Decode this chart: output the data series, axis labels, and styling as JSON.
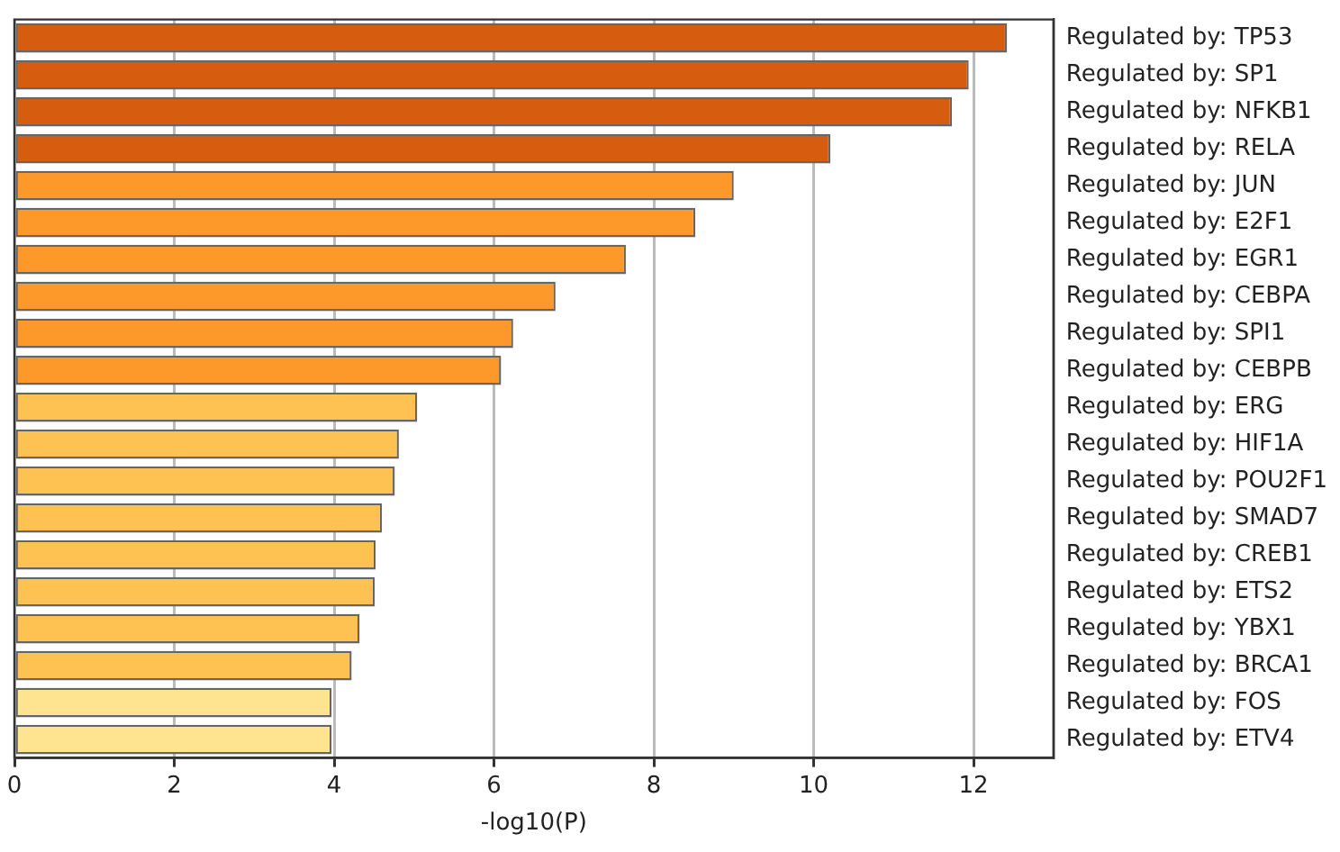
{
  "chart_data": {
    "type": "bar",
    "orientation": "horizontal",
    "xlabel": "-log10(P)",
    "categories": [
      "Regulated by: TP53",
      "Regulated by: SP1",
      "Regulated by: NFKB1",
      "Regulated by: RELA",
      "Regulated by: JUN",
      "Regulated by: E2F1",
      "Regulated by: EGR1",
      "Regulated by: CEBPA",
      "Regulated by: SPI1",
      "Regulated by: CEBPB",
      "Regulated by: ERG",
      "Regulated by: HIF1A",
      "Regulated by: POU2F1",
      "Regulated by: SMAD7",
      "Regulated by: CREB1",
      "Regulated by: ETS2",
      "Regulated by: YBX1",
      "Regulated by: BRCA1",
      "Regulated by: FOS",
      "Regulated by: ETV4"
    ],
    "values": [
      12.42,
      11.94,
      11.73,
      10.21,
      9.0,
      8.52,
      7.65,
      6.77,
      6.24,
      6.09,
      5.04,
      4.81,
      4.76,
      4.6,
      4.52,
      4.51,
      4.32,
      4.22,
      3.97,
      3.97
    ],
    "colors": [
      "#d65c0f",
      "#d65c0f",
      "#d65c0f",
      "#d65c0f",
      "#fd982a",
      "#fd982a",
      "#fd982a",
      "#fd982a",
      "#fd982a",
      "#fd982a",
      "#fec253",
      "#fec253",
      "#fec253",
      "#fec253",
      "#fec253",
      "#fec253",
      "#fec253",
      "#fec253",
      "#fee391",
      "#fee391"
    ],
    "xlim": [
      0,
      13
    ],
    "xticks": [
      0,
      2,
      4,
      6,
      8,
      10,
      12
    ],
    "grid": "x",
    "legend": false
  }
}
